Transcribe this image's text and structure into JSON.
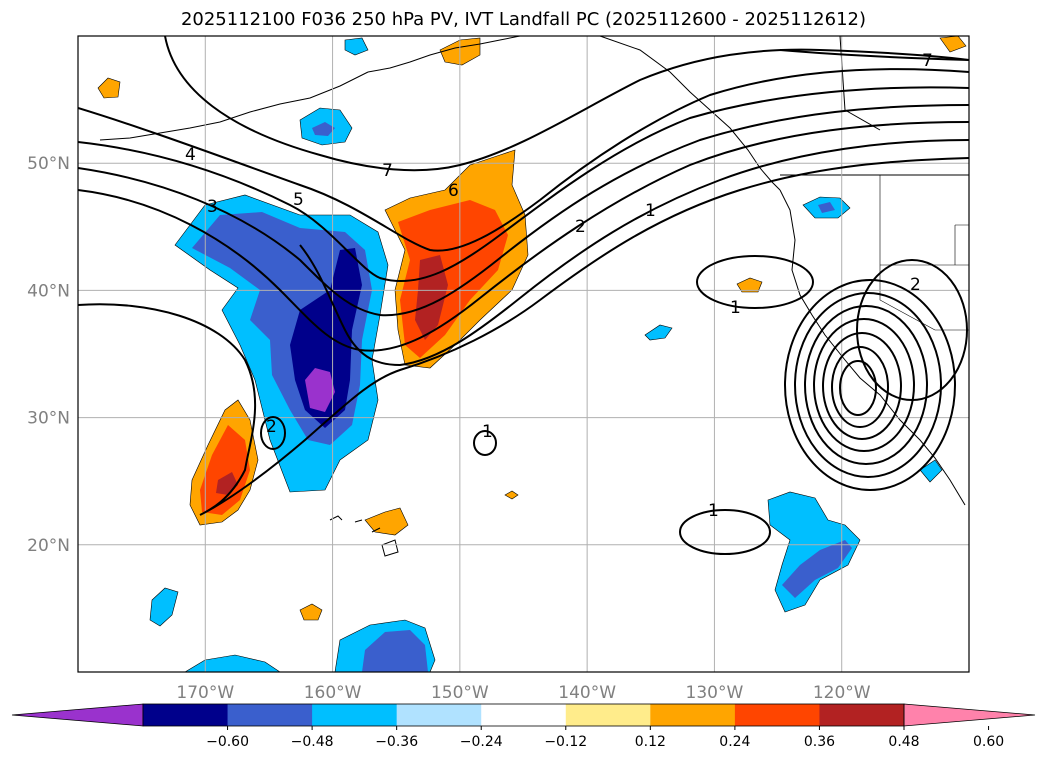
{
  "title": "2025112100 F036 250 hPa PV, IVT Landfall PC (2025112600 - 2025112612)",
  "map": {
    "lon_range": [
      -180,
      -110
    ],
    "lat_range": [
      10,
      60
    ],
    "lon_ticks": [
      {
        "value": -170,
        "label": "170°W"
      },
      {
        "value": -160,
        "label": "160°W"
      },
      {
        "value": -150,
        "label": "150°W"
      },
      {
        "value": -140,
        "label": "140°W"
      },
      {
        "value": -130,
        "label": "130°W"
      },
      {
        "value": -120,
        "label": "120°W"
      }
    ],
    "lat_ticks": [
      {
        "value": 20,
        "label": "20°N"
      },
      {
        "value": 30,
        "label": "30°N"
      },
      {
        "value": 40,
        "label": "40°N"
      },
      {
        "value": 50,
        "label": "50°N"
      }
    ],
    "contour_labels": [
      "1",
      "2",
      "3",
      "4",
      "5",
      "6",
      "7"
    ]
  },
  "colorbar": {
    "ticks": [
      "−0.60",
      "−0.48",
      "−0.36",
      "−0.24",
      "−0.12",
      "0.12",
      "0.24",
      "0.36",
      "0.48",
      "0.60"
    ],
    "colors": [
      "#9a32cd",
      "#00008b",
      "#3a5fcd",
      "#00bfff",
      "#b0e2ff",
      "#ffffff",
      "#ffec8b",
      "#ffa500",
      "#ff4500",
      "#b22222",
      "#ff82ab"
    ]
  }
}
